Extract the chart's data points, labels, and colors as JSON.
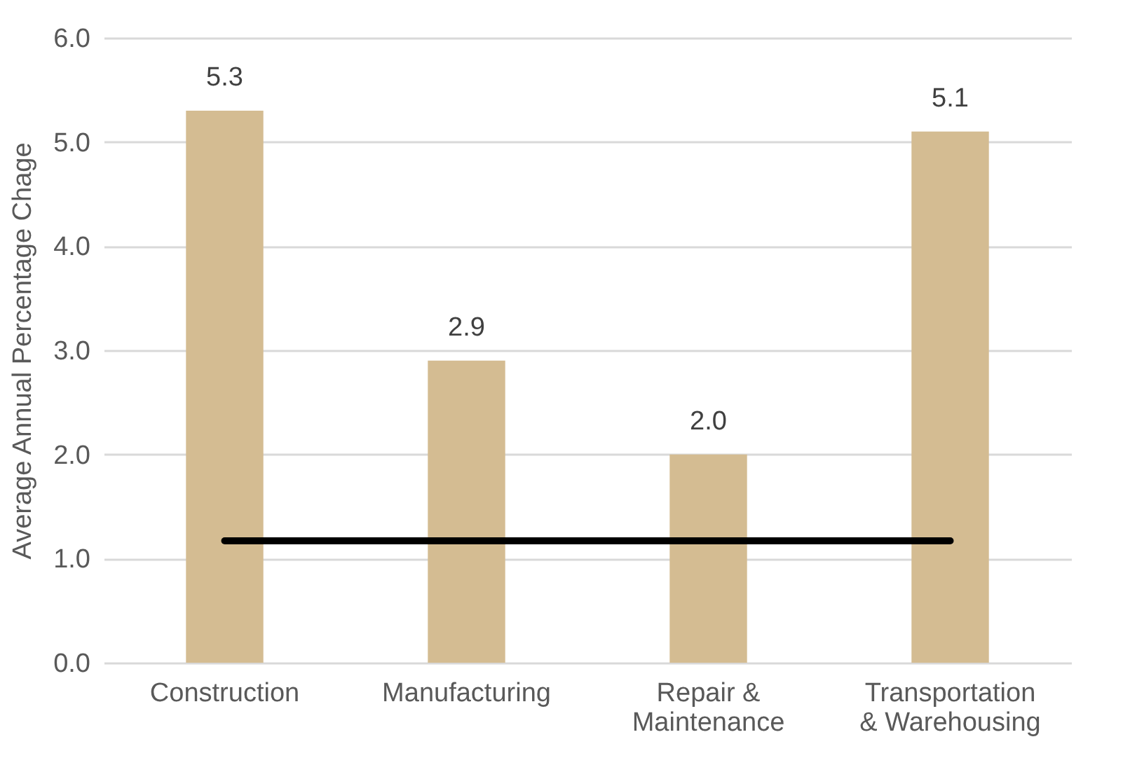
{
  "chart_data": {
    "type": "bar",
    "ylabel": "Average Annual Percentage Chage",
    "categories": [
      "Construction",
      "Manufacturing",
      "Repair & Maintenance",
      "Transportation & Warehousing"
    ],
    "series": [
      {
        "color": "#d4bc92",
        "values": [
          5.3,
          2.9,
          2.0,
          5.1
        ],
        "value_labels": [
          "5.3",
          "2.9",
          "2.0",
          "5.1"
        ]
      },
      {
        "type": "line",
        "color": "#000000",
        "values": [
          1.17,
          1.17,
          1.17,
          1.17
        ],
        "marker": "none"
      }
    ],
    "ylim": [
      0,
      6
    ],
    "yticks": [
      {
        "value": 0,
        "label": "0.0"
      },
      {
        "value": 1,
        "label": "1.0"
      },
      {
        "value": 2,
        "label": "2.0"
      },
      {
        "value": 3,
        "label": "3.0"
      },
      {
        "value": 4,
        "label": "4.0"
      },
      {
        "value": 5,
        "label": "5.0"
      },
      {
        "value": 6,
        "label": "6.0"
      }
    ],
    "grid": "y"
  }
}
